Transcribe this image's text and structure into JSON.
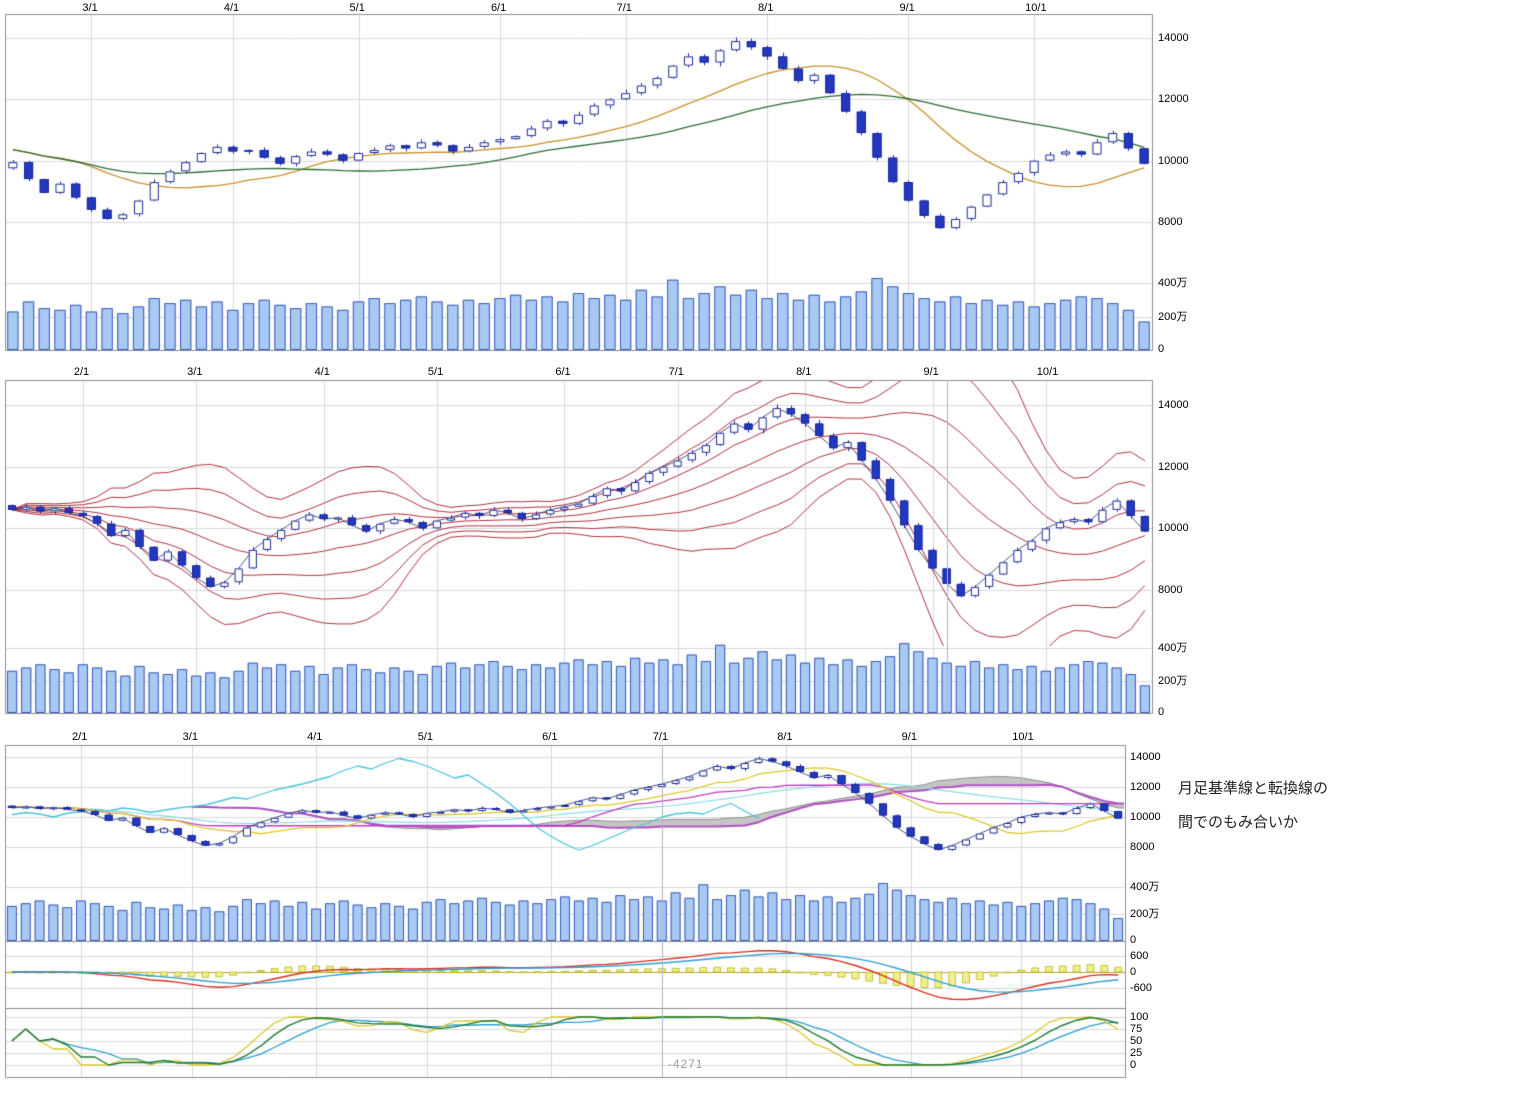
{
  "annotation": {
    "line1": "月足基準線と転換線の",
    "line2": "間でのもみ合いか"
  },
  "crosshair_readout": "-4271",
  "colors": {
    "candle_stroke": "#1b2a96",
    "candle_down_fill": "#2338c0",
    "candle_up_fill": "#ffffff",
    "close_line": "#222a66",
    "volume_fill": "#a9c9f5",
    "volume_stroke": "#3b5bb5",
    "grid": "#d9d9d9",
    "axis": "#8c8c8c",
    "ma_short": "#c8922a",
    "ma_long": "#2f6b33",
    "band": "#b03040",
    "tenkan": "#ddc832",
    "kijun": "#c23cc2",
    "chikou": "#4cc4dc",
    "extra_ma": "#8adce8",
    "cloud_fill": "rgba(178,178,178,0.75)",
    "cloud_border": "#909090",
    "senkou_b": "#b050c0",
    "macd_line": "#d83020",
    "macd_signal": "#2f9fd0",
    "macd_zero": "#b8a820",
    "macd_hist_fill": "#f0ee90",
    "macd_hist_stroke": "#b8b820",
    "stoch_fast": "#d8c82a",
    "stoch_mid": "#1f7a33",
    "stoch_slow": "#2f9fd0",
    "marker_line": "#a8b2dc"
  },
  "chart_data": {
    "type": "candlestick",
    "description": "Three stacked candlestick study panels of the same stock (Feb-Oct): moving averages, sigma bands, and ichimoku with volume, MACD and stochastics sub-charts",
    "months": [
      {
        "label": "2/1",
        "index": 5
      },
      {
        "label": "3/1",
        "index": 13
      },
      {
        "label": "4/1",
        "index": 22
      },
      {
        "label": "5/1",
        "index": 30
      },
      {
        "label": "6/1",
        "index": 39
      },
      {
        "label": "7/1",
        "index": 47
      },
      {
        "label": "8/1",
        "index": 56
      },
      {
        "label": "9/1",
        "index": 65
      },
      {
        "label": "10/1",
        "index": 73
      }
    ],
    "closes": [
      10600,
      10700,
      10550,
      10650,
      10500,
      10400,
      10150,
      9750,
      9950,
      9400,
      8950,
      9250,
      8800,
      8400,
      8100,
      8250,
      8700,
      9300,
      9650,
      9950,
      10250,
      10450,
      10300,
      10350,
      10100,
      9900,
      10150,
      10300,
      10200,
      10000,
      10250,
      10350,
      10500,
      10400,
      10600,
      10500,
      10300,
      10450,
      10600,
      10700,
      10800,
      11050,
      11300,
      11200,
      11500,
      11800,
      12000,
      12200,
      12450,
      12700,
      13100,
      13400,
      13200,
      13600,
      13900,
      13700,
      13400,
      13000,
      12600,
      12800,
      12200,
      11600,
      10900,
      10100,
      9300,
      8700,
      8200,
      7800,
      8100,
      8500,
      8900,
      9300,
      9600,
      10000,
      10200,
      10300,
      10200,
      10600,
      10900,
      10400,
      9900
    ],
    "volumes_10k": [
      260,
      280,
      300,
      270,
      250,
      300,
      280,
      260,
      230,
      290,
      250,
      240,
      270,
      230,
      250,
      220,
      260,
      310,
      280,
      300,
      260,
      290,
      240,
      280,
      300,
      270,
      250,
      280,
      260,
      240,
      290,
      310,
      280,
      300,
      320,
      290,
      270,
      300,
      280,
      310,
      330,
      300,
      320,
      290,
      340,
      310,
      330,
      300,
      360,
      320,
      420,
      310,
      340,
      380,
      330,
      360,
      310,
      340,
      300,
      330,
      290,
      320,
      350,
      430,
      380,
      340,
      310,
      290,
      320,
      280,
      300,
      270,
      290,
      260,
      280,
      300,
      320,
      310,
      280,
      240,
      170
    ],
    "panels": [
      {
        "name": "candlestick-with-moving-averages",
        "x_labels": [
          "3/1",
          "4/1",
          "5/1",
          "6/1",
          "7/1",
          "8/1",
          "9/1",
          "10/1"
        ],
        "price_ticks": [
          14000,
          12000,
          10000,
          8000
        ],
        "volume_ticks": [
          "400万",
          "200万",
          "0"
        ],
        "overlays": [
          "short moving average",
          "long moving average"
        ]
      },
      {
        "name": "sigma-band-chart",
        "x_labels": [
          "2/1",
          "3/1",
          "4/1",
          "5/1",
          "6/1",
          "7/1",
          "8/1",
          "9/1",
          "10/1"
        ],
        "price_ticks": [
          14000,
          12000,
          10000,
          8000
        ],
        "volume_ticks": [
          "400万",
          "200万",
          "0"
        ],
        "overlays": [
          "±1σ",
          "±2σ",
          "±3σ"
        ]
      },
      {
        "name": "ichimoku-macd-stochastics",
        "x_labels": [
          "2/1",
          "3/1",
          "4/1",
          "5/1",
          "6/1",
          "7/1",
          "8/1",
          "9/1",
          "10/1"
        ],
        "price_ticks": [
          14000,
          12000,
          10000,
          8000
        ],
        "volume_ticks": [
          "400万",
          "200万",
          "0"
        ],
        "macd_ticks": [
          "600",
          "0",
          "-600"
        ],
        "stoch_ticks": [
          "100",
          "75",
          "50",
          "25",
          "0"
        ],
        "overlays": [
          "転換線",
          "基準線",
          "遅行スパン",
          "雲"
        ]
      }
    ]
  }
}
